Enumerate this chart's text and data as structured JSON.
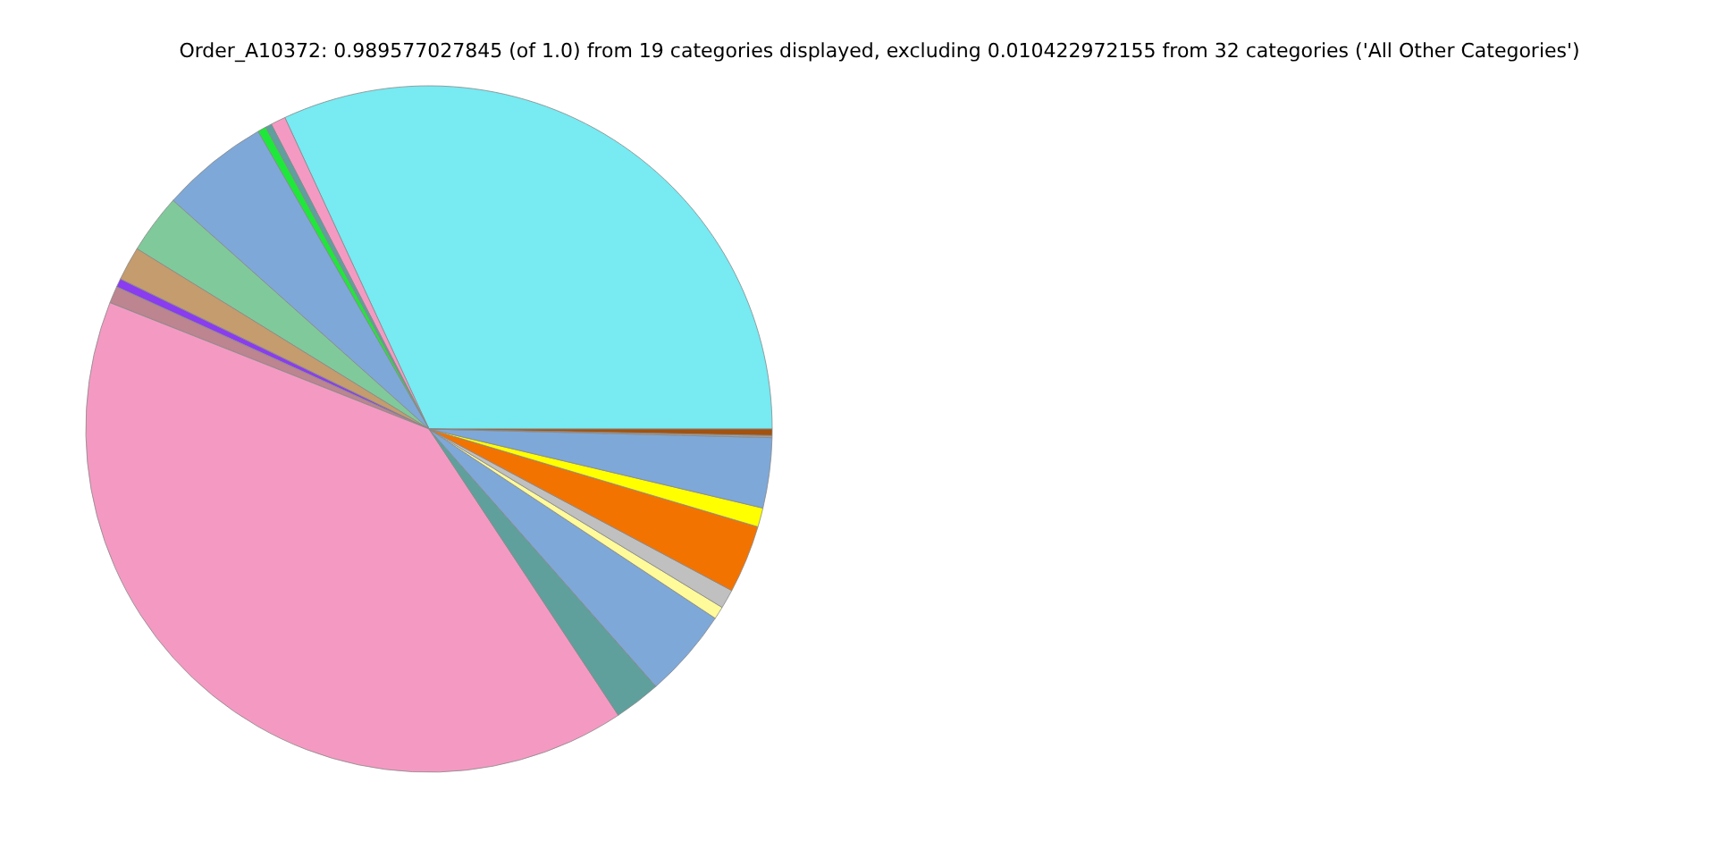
{
  "chart_data": {
    "type": "pie",
    "title": "Order_A10372: 0.989577027845 (of 1.0) from 19 categories displayed, excluding 0.010422972155 from 32 categories ('All Other Categories')",
    "categories": [
      null,
      null,
      null,
      null,
      null,
      null,
      null,
      null,
      null,
      null,
      null,
      null,
      null,
      null,
      null,
      null,
      null,
      null,
      null
    ],
    "values": [
      31.9,
      0.7,
      0.3,
      0.4,
      5.1,
      2.8,
      1.6,
      0.4,
      0.8,
      40.3,
      2.2,
      4.2,
      0.6,
      0.9,
      3.2,
      0.9,
      3.3,
      0.1,
      0.3
    ],
    "colors": [
      "#77eaf2",
      "#f49ac2",
      "#5f9f9f",
      "#1ee83a",
      "#7ea8d8",
      "#80c99b",
      "#c49c6e",
      "#8a3cf0",
      "#bc8590",
      "#f49ac2",
      "#5fa09d",
      "#7ea8d8",
      "#fffa9a",
      "#c0c0c0",
      "#f37300",
      "#ffff00",
      "#7ea8d8",
      "#a0a0a0",
      "#a3520f"
    ],
    "legend": false
  }
}
